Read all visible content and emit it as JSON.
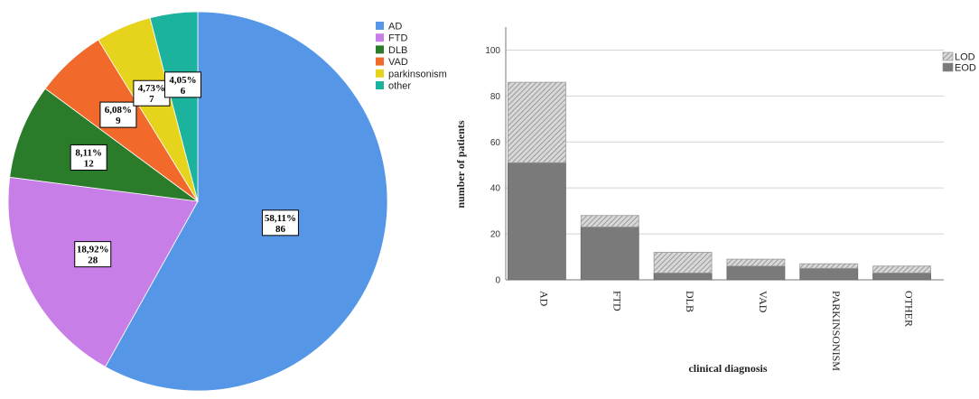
{
  "chart_data": [
    {
      "type": "pie",
      "categories": [
        "AD",
        "FTD",
        "DLB",
        "VAD",
        "parkinsonism",
        "other"
      ],
      "values": [
        86,
        28,
        12,
        9,
        7,
        6
      ],
      "percent_labels": [
        "58,11%",
        "18,92%",
        "8,11%",
        "6,08%",
        "4,73%",
        "4,05%"
      ],
      "colors": [
        "#5596e6",
        "#c77ee6",
        "#2a7b2a",
        "#f2692c",
        "#e6d41c",
        "#1cb39e"
      ],
      "legend_position": "top-right"
    },
    {
      "type": "bar",
      "stacked": true,
      "categories": [
        "AD",
        "FTD",
        "DLB",
        "VAD",
        "PARKINSONISM",
        "OTHER"
      ],
      "series": [
        {
          "name": "EOD",
          "values": [
            51,
            23,
            3,
            6,
            5,
            3
          ]
        },
        {
          "name": "LOD",
          "values": [
            35,
            5,
            9,
            3,
            2,
            3
          ]
        }
      ],
      "legend_order": [
        "LOD",
        "EOD"
      ],
      "xlabel": "clinical diagnosis",
      "ylabel": "number of patients",
      "ylim": [
        0,
        110
      ],
      "yticks": [
        0,
        20,
        40,
        60,
        80,
        100
      ],
      "grid": true,
      "legend_position": "top-right"
    }
  ]
}
